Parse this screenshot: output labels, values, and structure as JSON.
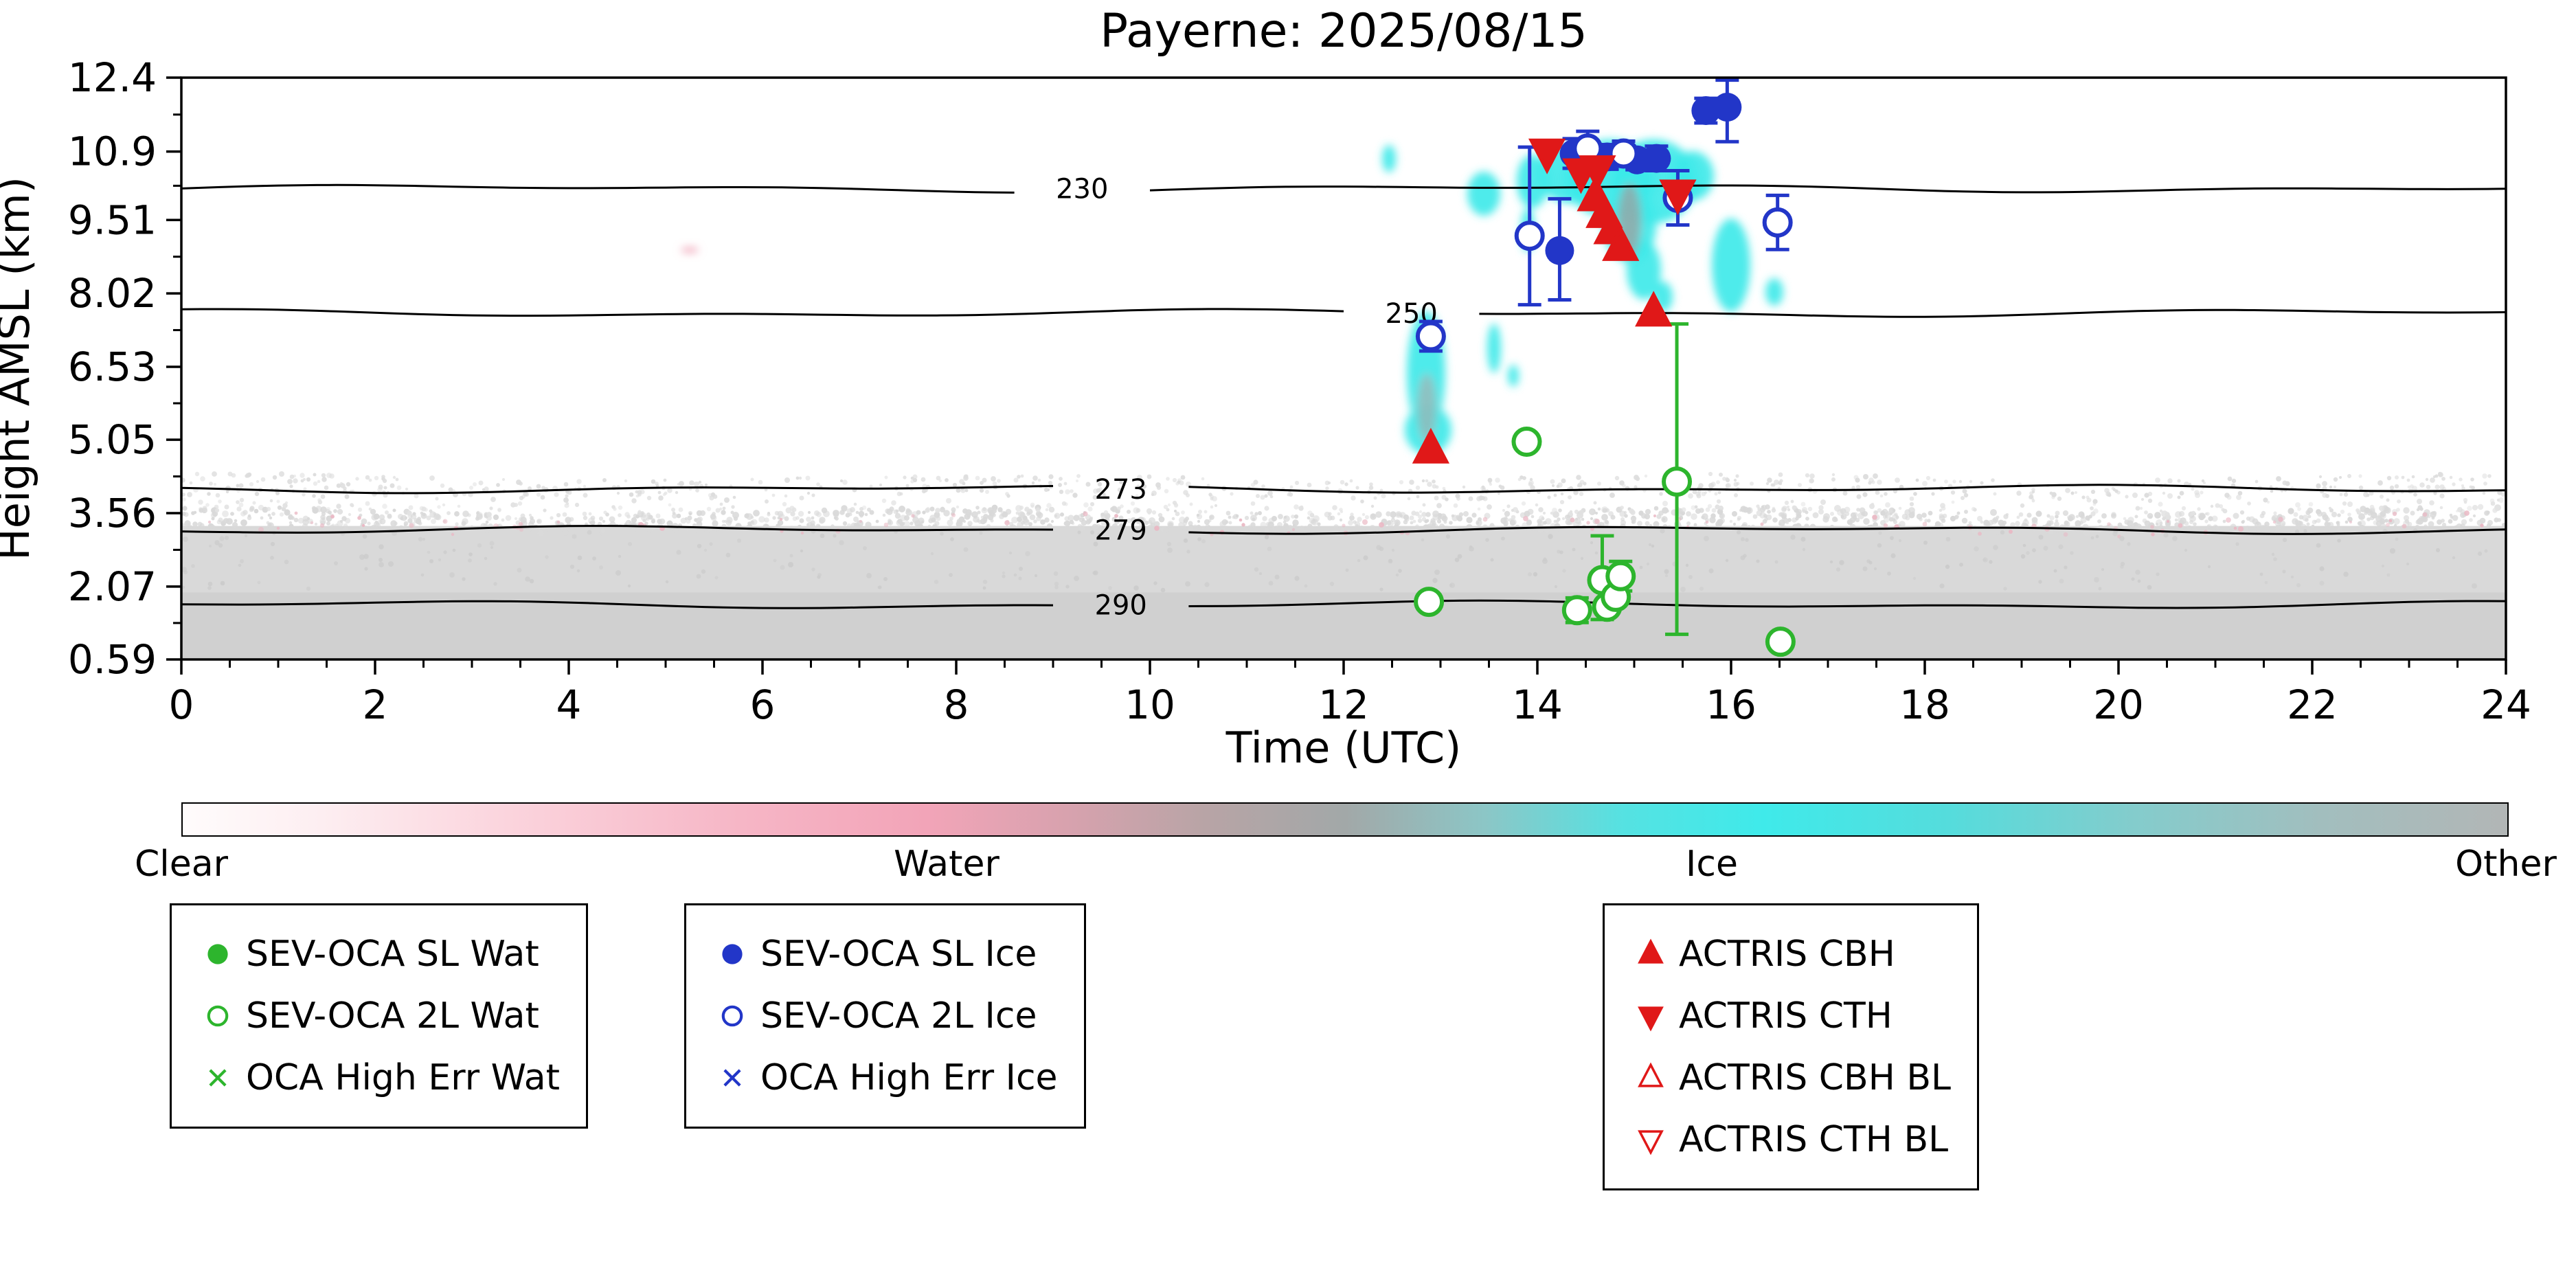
{
  "chart_data": {
    "type": "scatter",
    "title": "Payerne: 2025/08/15",
    "xlabel": "Time (UTC)",
    "ylabel": "Height AMSL (km)",
    "xlim": [
      0,
      24
    ],
    "ylim": [
      0.59,
      12.4
    ],
    "xticks": [
      0,
      2,
      4,
      6,
      8,
      10,
      12,
      14,
      16,
      18,
      20,
      22,
      24
    ],
    "xtick_minor_step": 0.5,
    "yticks": [
      0.59,
      2.07,
      3.56,
      5.05,
      6.53,
      8.02,
      9.51,
      10.9,
      12.4
    ],
    "ytick_labels": [
      "0.59",
      "2.07",
      "3.56",
      "5.05",
      "6.53",
      "8.02",
      "9.51",
      "10.9",
      "12.4"
    ],
    "grid": false,
    "isotherms": [
      {
        "label": "230",
        "height": 10.15,
        "label_x": 9.3
      },
      {
        "label": "250",
        "height": 7.62,
        "label_x": 12.7
      },
      {
        "label": "273",
        "height": 4.05,
        "label_x": 9.7
      },
      {
        "label": "279",
        "height": 3.22,
        "label_x": 9.7
      },
      {
        "label": "290",
        "height": 1.7,
        "label_x": 9.7
      }
    ],
    "background": {
      "bands": [
        {
          "type": "rect",
          "y0": 0.59,
          "y1": 3.3,
          "color": "#d9d9d9"
        },
        {
          "type": "rect",
          "y0": 0.59,
          "y1": 1.95,
          "color": "#d0d0d0"
        },
        {
          "type": "speckle",
          "y0": 3.2,
          "y1": 3.62,
          "count": 1500,
          "color": "#d9d9d9",
          "rmin": 2,
          "rmax": 5,
          "wave": 0.07
        },
        {
          "type": "speckle",
          "y0": 3.55,
          "y1": 3.8,
          "count": 220,
          "color": "#e2e2e2",
          "rmin": 2,
          "rmax": 4,
          "wave": 0.05
        },
        {
          "type": "speckle",
          "y0": 3.85,
          "y1": 4.3,
          "count": 650,
          "color": "#dddddd",
          "rmin": 2,
          "rmax": 4,
          "wave": 0.06
        },
        {
          "type": "speckle",
          "y0": 3.15,
          "y1": 3.5,
          "count": 90,
          "color": "#eab8c4",
          "rmin": 2,
          "rmax": 4,
          "wave": 0.07
        },
        {
          "type": "speckle",
          "y0": 2.0,
          "y1": 3.2,
          "count": 300,
          "color": "#cccccc",
          "rmin": 2,
          "rmax": 4,
          "wave": 0
        }
      ]
    },
    "cloud_color": "#3ce9e9",
    "clouds": [
      {
        "x": 12.47,
        "y": 10.75,
        "rx": 0.07,
        "ry": 0.28
      },
      {
        "x": 13.45,
        "y": 10.05,
        "rx": 0.17,
        "ry": 0.45
      },
      {
        "x": 13.95,
        "y": 10.3,
        "rx": 0.16,
        "ry": 0.55
      },
      {
        "x": 14.35,
        "y": 10.45,
        "rx": 0.34,
        "ry": 0.6
      },
      {
        "x": 14.75,
        "y": 10.35,
        "rx": 0.46,
        "ry": 0.8
      },
      {
        "x": 15.2,
        "y": 10.3,
        "rx": 0.45,
        "ry": 0.85
      },
      {
        "x": 15.6,
        "y": 10.4,
        "rx": 0.22,
        "ry": 0.5
      },
      {
        "x": 14.95,
        "y": 9.4,
        "rx": 0.28,
        "ry": 0.75
      },
      {
        "x": 15.1,
        "y": 8.5,
        "rx": 0.18,
        "ry": 0.6
      },
      {
        "x": 15.3,
        "y": 7.95,
        "rx": 0.1,
        "ry": 0.3
      },
      {
        "x": 13.9,
        "y": 9.3,
        "rx": 0.07,
        "ry": 0.45
      },
      {
        "x": 16.0,
        "y": 8.6,
        "rx": 0.2,
        "ry": 0.95
      },
      {
        "x": 16.45,
        "y": 8.05,
        "rx": 0.09,
        "ry": 0.28
      },
      {
        "x": 12.85,
        "y": 6.4,
        "rx": 0.2,
        "ry": 1.25
      },
      {
        "x": 12.87,
        "y": 5.25,
        "rx": 0.24,
        "ry": 0.5
      },
      {
        "x": 13.55,
        "y": 6.9,
        "rx": 0.07,
        "ry": 0.5
      },
      {
        "x": 13.75,
        "y": 6.35,
        "rx": 0.06,
        "ry": 0.22
      },
      {
        "x": 5.25,
        "y": 8.9,
        "rx": 0.09,
        "ry": 0.06,
        "color": "#f0a0b4"
      },
      {
        "x": 14.95,
        "y": 9.5,
        "rx": 0.12,
        "ry": 0.75,
        "color": "#9aa4a4",
        "opacity": 0.8
      },
      {
        "x": 12.86,
        "y": 5.7,
        "rx": 0.1,
        "ry": 0.7,
        "color": "#a8b0b0",
        "opacity": 0.7
      }
    ],
    "series": [
      {
        "name": "SEV-OCA SL Wat",
        "marker": "o-filled",
        "color": "#2db52d",
        "points": []
      },
      {
        "name": "SEV-OCA 2L Wat",
        "marker": "o-open",
        "color": "#2db52d",
        "points": [
          {
            "x": 12.88,
            "y": 1.76,
            "e": 0.15
          },
          {
            "x": 13.89,
            "y": 5.01,
            "e": 0.15
          },
          {
            "x": 14.41,
            "y": 1.59,
            "e": 0.25
          },
          {
            "x": 14.67,
            "y": 2.2,
            "elo": 0.8,
            "ehi": 0.9
          },
          {
            "x": 14.72,
            "y": 1.66,
            "e": 0.15
          },
          {
            "x": 14.81,
            "y": 1.86,
            "e": 0.12
          },
          {
            "x": 14.86,
            "y": 2.28,
            "e": 0.3
          },
          {
            "x": 15.44,
            "y": 4.2,
            "elo": 3.1,
            "ehi": 3.2
          },
          {
            "x": 16.51,
            "y": 0.95,
            "e": 0.12
          }
        ]
      },
      {
        "name": "OCA High Err Wat",
        "marker": "x",
        "color": "#2db52d",
        "points": []
      },
      {
        "name": "SEV-OCA SL Ice",
        "marker": "o-filled",
        "color": "#2236c8",
        "points": [
          {
            "x": 14.23,
            "y": 8.89,
            "elo": 1.0,
            "ehi": 1.05
          },
          {
            "x": 14.38,
            "y": 10.86,
            "e": 0.3
          },
          {
            "x": 14.72,
            "y": 10.79,
            "e": 0.25
          },
          {
            "x": 15.03,
            "y": 10.73,
            "e": 0.2
          },
          {
            "x": 15.23,
            "y": 10.76,
            "e": 0.25
          },
          {
            "x": 15.74,
            "y": 11.73,
            "e": 0.25
          },
          {
            "x": 15.96,
            "y": 11.8,
            "elo": 0.7,
            "ehi": 0.55
          }
        ]
      },
      {
        "name": "SEV-OCA 2L Ice",
        "marker": "o-open",
        "color": "#2236c8",
        "points": [
          {
            "x": 12.9,
            "y": 7.15,
            "e": 0.3
          },
          {
            "x": 13.92,
            "y": 9.19,
            "elo": 1.4,
            "ehi": 1.8
          },
          {
            "x": 14.52,
            "y": 10.96,
            "e": 0.35
          },
          {
            "x": 14.89,
            "y": 10.86,
            "e": 0.25
          },
          {
            "x": 15.45,
            "y": 9.96,
            "e": 0.55
          },
          {
            "x": 16.48,
            "y": 9.46,
            "e": 0.55
          }
        ]
      },
      {
        "name": "OCA High Err Ice",
        "marker": "x",
        "color": "#2236c8",
        "points": []
      },
      {
        "name": "ACTRIS CBH",
        "marker": "tri-up-filled",
        "color": "#e01818",
        "points": [
          {
            "x": 12.9,
            "y": 4.84
          },
          {
            "x": 14.6,
            "y": 9.96
          },
          {
            "x": 14.69,
            "y": 9.62
          },
          {
            "x": 14.77,
            "y": 9.29
          },
          {
            "x": 14.86,
            "y": 8.95
          },
          {
            "x": 15.2,
            "y": 7.62
          }
        ]
      },
      {
        "name": "ACTRIS CTH",
        "marker": "tri-down-filled",
        "color": "#e01818",
        "points": [
          {
            "x": 14.1,
            "y": 10.89
          },
          {
            "x": 14.45,
            "y": 10.49
          },
          {
            "x": 14.62,
            "y": 10.55
          },
          {
            "x": 15.45,
            "y": 10.06
          }
        ]
      },
      {
        "name": "ACTRIS CBH BL",
        "marker": "tri-up-open",
        "color": "#e01818",
        "points": []
      },
      {
        "name": "ACTRIS CTH BL",
        "marker": "tri-down-open",
        "color": "#e01818",
        "points": []
      }
    ]
  },
  "colorbar": {
    "labels": {
      "clear": "Clear",
      "water": "Water",
      "ice": "Ice",
      "other": "Other"
    },
    "gradient": [
      [
        "0",
        "#fffcfc"
      ],
      [
        "6",
        "#fdeef1"
      ],
      [
        "14",
        "#fbd4dd"
      ],
      [
        "24",
        "#f6b6c6"
      ],
      [
        "32",
        "#f2a4b8"
      ],
      [
        "38",
        "#d8a2ae"
      ],
      [
        "44",
        "#b8a4a6"
      ],
      [
        "50",
        "#a2a8a8"
      ],
      [
        "56",
        "#8cc6c6"
      ],
      [
        "62",
        "#55e2e2"
      ],
      [
        "68",
        "#3feaea"
      ],
      [
        "76",
        "#55dcdc"
      ],
      [
        "84",
        "#84cccc"
      ],
      [
        "92",
        "#a2bebe"
      ],
      [
        "100",
        "#b2b6b6"
      ]
    ]
  },
  "legends": [
    {
      "id": "legend-wat",
      "items": [
        {
          "marker": "o-filled",
          "color": "#2db52d",
          "label": "SEV-OCA SL Wat"
        },
        {
          "marker": "o-open",
          "color": "#2db52d",
          "label": "SEV-OCA 2L Wat"
        },
        {
          "marker": "x",
          "color": "#2db52d",
          "label": "OCA High Err Wat"
        }
      ]
    },
    {
      "id": "legend-ice",
      "items": [
        {
          "marker": "o-filled",
          "color": "#2236c8",
          "label": "SEV-OCA SL Ice"
        },
        {
          "marker": "o-open",
          "color": "#2236c8",
          "label": "SEV-OCA 2L Ice"
        },
        {
          "marker": "x",
          "color": "#2236c8",
          "label": "OCA High Err Ice"
        }
      ]
    },
    {
      "id": "legend-actris",
      "items": [
        {
          "marker": "tri-up-filled",
          "color": "#e01818",
          "label": "ACTRIS CBH"
        },
        {
          "marker": "tri-down-filled",
          "color": "#e01818",
          "label": "ACTRIS CTH"
        },
        {
          "marker": "tri-up-open",
          "color": "#e01818",
          "label": "ACTRIS CBH BL"
        },
        {
          "marker": "tri-down-open",
          "color": "#e01818",
          "label": "ACTRIS CTH BL"
        }
      ]
    }
  ]
}
